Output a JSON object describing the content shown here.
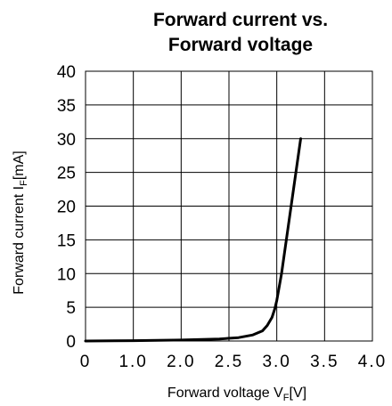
{
  "chart_data": {
    "type": "line",
    "title": [
      "Forward current vs.",
      "Forward voltage"
    ],
    "xlabel": {
      "main": "Forward voltage  V",
      "subscript": "F",
      "unit": "[V]"
    },
    "ylabel": {
      "main": "Forward current  I",
      "subscript": "F",
      "unit": "[mA]"
    },
    "xlim": [
      0,
      4.0
    ],
    "ylim": [
      0,
      40
    ],
    "x_tick_labels": [
      "0",
      "1.0",
      "2.0",
      "2.5",
      "3.0",
      "3.5",
      "4.0"
    ],
    "y_tick_labels": [
      "0",
      "5",
      "10",
      "15",
      "20",
      "25",
      "30",
      "35",
      "40"
    ],
    "grid": true,
    "series": [
      {
        "x": [
          0,
          1.0,
          2.0,
          2.4,
          2.6,
          2.75,
          2.85,
          2.9,
          2.95,
          2.98,
          3.0,
          3.05,
          3.1,
          3.15,
          3.2,
          3.25
        ],
        "y": [
          0,
          0.05,
          0.15,
          0.3,
          0.5,
          0.9,
          1.5,
          2.3,
          3.5,
          4.8,
          6.0,
          10.0,
          15.0,
          20.0,
          25.0,
          30.0
        ]
      }
    ]
  }
}
